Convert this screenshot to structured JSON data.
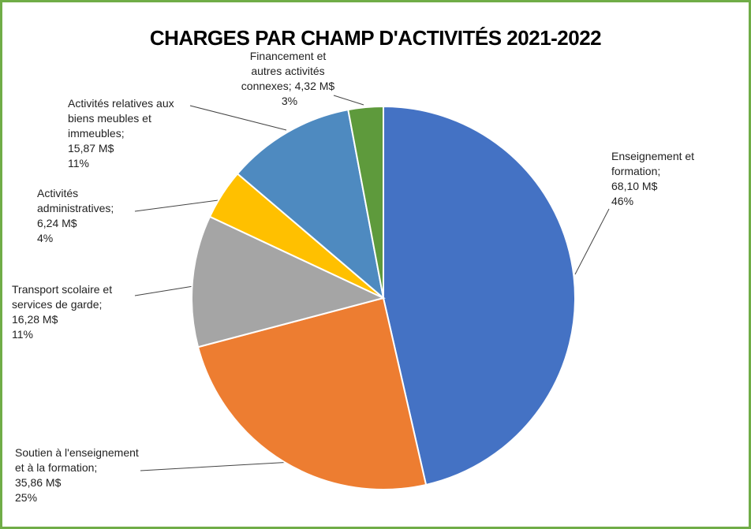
{
  "chart_data": {
    "type": "pie",
    "title": "CHARGES PAR CHAMP D'ACTIVITÉS 2021-2022",
    "categories": [
      "Enseignement et formation;",
      "Soutien à l'enseignement et à la formation;",
      "Transport scolaire et services de garde;",
      "Activités administratives;",
      "Activités relatives aux biens meubles et immeubles;",
      "Financement et autres activités connexes;"
    ],
    "values": [
      68.1,
      35.86,
      16.28,
      6.24,
      15.87,
      4.32
    ],
    "value_labels": [
      "68,10 M$",
      "35,86 M$",
      "16,28 M$",
      "6,24 M$",
      "15,87 M$",
      "4,32 M$"
    ],
    "percent_labels": [
      "46%",
      "25%",
      "11%",
      "4%",
      "11%",
      "3%"
    ],
    "colors": [
      "#4472c4",
      "#ed7d31",
      "#a5a5a5",
      "#ffc000",
      "#4e8ac0",
      "#5e9a3c"
    ]
  }
}
